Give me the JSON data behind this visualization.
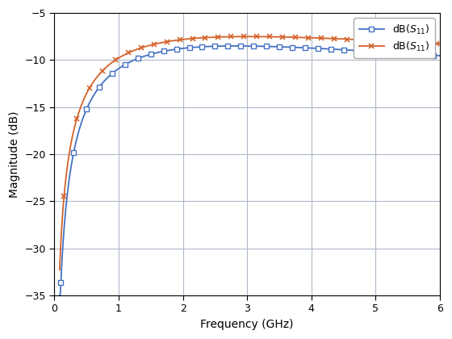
{
  "xlabel": "Frequency (GHz)",
  "ylabel": "Magnitude (dB)",
  "xlim": [
    0,
    6
  ],
  "ylim": [
    -35,
    -5
  ],
  "yticks": [
    -35,
    -30,
    -25,
    -20,
    -15,
    -10,
    -5
  ],
  "xticks": [
    0,
    1,
    2,
    3,
    4,
    5,
    6
  ],
  "line1_color": "#4472C4",
  "line2_color": "#D4622A",
  "background_color": "#ffffff",
  "grid_color": "#b0b8c8"
}
